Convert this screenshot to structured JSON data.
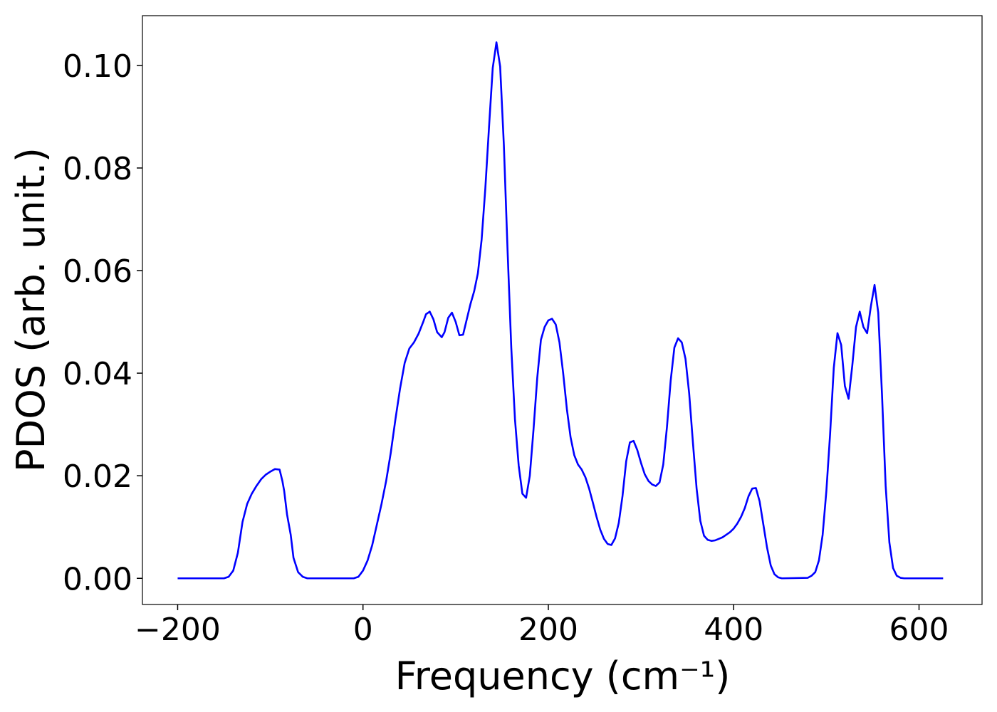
{
  "chart_data": {
    "type": "line",
    "xlabel": "Frequency (cm⁻¹)",
    "ylabel": "PDOS (arb. unit.)",
    "xlim": [
      -238,
      668
    ],
    "ylim": [
      -0.0051,
      0.1097
    ],
    "xticks": [
      {
        "value": -200,
        "label": "−200"
      },
      0,
      200,
      400,
      600
    ],
    "yticks": [
      {
        "value": 0,
        "label": "0.00"
      },
      {
        "value": 0.02,
        "label": "0.02"
      },
      {
        "value": 0.04,
        "label": "0.04"
      },
      {
        "value": 0.06,
        "label": "0.06"
      },
      {
        "value": 0.08,
        "label": "0.08"
      },
      {
        "value": 0.1,
        "label": "0.10"
      }
    ],
    "x": [
      -200,
      -150,
      -145,
      -140,
      -135,
      -130,
      -125,
      -120,
      -115,
      -110,
      -105,
      -100,
      -95,
      -90,
      -87,
      -85,
      -82,
      -78,
      -75,
      -70,
      -65,
      -60,
      -10,
      -5,
      0,
      5,
      10,
      15,
      20,
      25,
      30,
      35,
      40,
      45,
      50,
      55,
      60,
      65,
      68,
      72,
      76,
      80,
      85,
      88,
      92,
      96,
      100,
      104,
      108,
      112,
      116,
      120,
      124,
      128,
      132,
      136,
      140,
      144,
      148,
      152,
      156,
      160,
      164,
      168,
      172,
      176,
      180,
      184,
      188,
      192,
      196,
      200,
      204,
      208,
      212,
      216,
      220,
      224,
      228,
      232,
      236,
      240,
      244,
      248,
      252,
      256,
      260,
      264,
      268,
      272,
      276,
      280,
      284,
      288,
      292,
      296,
      300,
      304,
      308,
      312,
      316,
      320,
      324,
      328,
      332,
      336,
      340,
      344,
      348,
      352,
      356,
      360,
      364,
      368,
      372,
      376,
      380,
      384,
      388,
      392,
      396,
      400,
      404,
      408,
      412,
      416,
      420,
      424,
      428,
      432,
      436,
      440,
      444,
      448,
      452,
      480,
      484,
      488,
      492,
      496,
      500,
      504,
      508,
      512,
      516,
      520,
      524,
      528,
      532,
      536,
      540,
      544,
      548,
      552,
      556,
      560,
      564,
      568,
      572,
      576,
      580,
      584,
      626
    ],
    "series": [
      {
        "color": "#0000ff",
        "values": [
          0,
          0,
          0.0003,
          0.0015,
          0.005,
          0.011,
          0.0145,
          0.0165,
          0.018,
          0.0193,
          0.0202,
          0.0208,
          0.0213,
          0.0212,
          0.019,
          0.017,
          0.0125,
          0.0085,
          0.004,
          0.0012,
          0.0003,
          0,
          0,
          0.0003,
          0.0015,
          0.0035,
          0.0065,
          0.0105,
          0.0145,
          0.019,
          0.0245,
          0.031,
          0.037,
          0.042,
          0.0448,
          0.046,
          0.0477,
          0.05,
          0.0515,
          0.052,
          0.0505,
          0.048,
          0.047,
          0.048,
          0.0508,
          0.0518,
          0.05,
          0.0474,
          0.0475,
          0.0505,
          0.0535,
          0.056,
          0.0595,
          0.066,
          0.076,
          0.088,
          0.0995,
          0.1045,
          0.0998,
          0.0845,
          0.064,
          0.045,
          0.031,
          0.022,
          0.0165,
          0.0157,
          0.02,
          0.029,
          0.039,
          0.0465,
          0.049,
          0.0503,
          0.0506,
          0.0495,
          0.046,
          0.04,
          0.033,
          0.0275,
          0.024,
          0.0222,
          0.0212,
          0.0197,
          0.0175,
          0.0148,
          0.012,
          0.0095,
          0.0077,
          0.0067,
          0.0065,
          0.0078,
          0.0108,
          0.016,
          0.0228,
          0.0265,
          0.0268,
          0.025,
          0.0225,
          0.0203,
          0.019,
          0.0183,
          0.018,
          0.0187,
          0.0222,
          0.0295,
          0.0385,
          0.045,
          0.0468,
          0.046,
          0.0428,
          0.036,
          0.0265,
          0.0175,
          0.0112,
          0.0083,
          0.0075,
          0.0073,
          0.0074,
          0.0077,
          0.008,
          0.0085,
          0.009,
          0.0097,
          0.0107,
          0.012,
          0.0137,
          0.016,
          0.0175,
          0.0176,
          0.015,
          0.0105,
          0.006,
          0.0025,
          0.0008,
          0.0002,
          0,
          0.0001,
          0.0005,
          0.0012,
          0.0035,
          0.0085,
          0.017,
          0.028,
          0.041,
          0.0478,
          0.0455,
          0.0375,
          0.035,
          0.0415,
          0.049,
          0.052,
          0.049,
          0.0478,
          0.053,
          0.0572,
          0.0518,
          0.036,
          0.018,
          0.007,
          0.002,
          0.0005,
          0.0001,
          0,
          0
        ]
      }
    ]
  }
}
